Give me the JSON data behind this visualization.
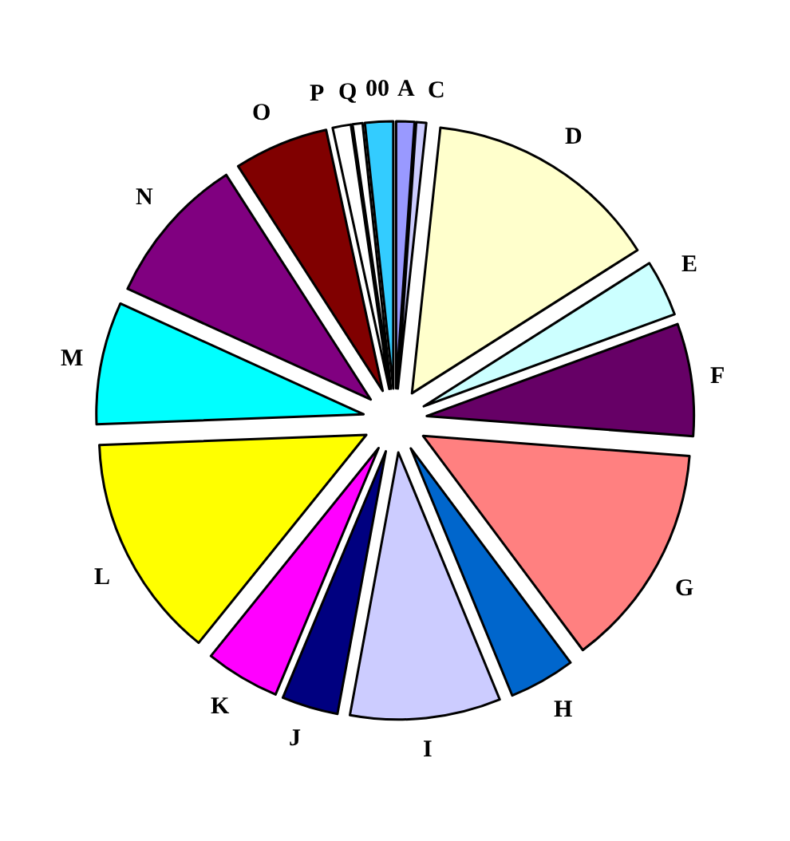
{
  "chart_data": {
    "type": "pie",
    "categories": [
      "A",
      "C",
      "D",
      "E",
      "F",
      "G",
      "H",
      "I",
      "J",
      "K",
      "L",
      "M",
      "N",
      "O",
      "P",
      "Q",
      "00"
    ],
    "values": [
      1.1,
      0.6,
      14.3,
      3.4,
      6.8,
      13.6,
      4,
      9.1,
      3.4,
      4.5,
      13.6,
      7.4,
      9.1,
      5.7,
      1.1,
      0.6,
      1.7
    ],
    "colors": [
      "#9999ff",
      "#ccccff",
      "#ffffcc",
      "#ccffff",
      "#660066",
      "#ff8080",
      "#0066cc",
      "#ccccff",
      "#000080",
      "#ff00ff",
      "#ffff00",
      "#00ffff",
      "#800080",
      "#800000",
      "#ffffff",
      "#ffffff",
      "#33ccff"
    ]
  }
}
